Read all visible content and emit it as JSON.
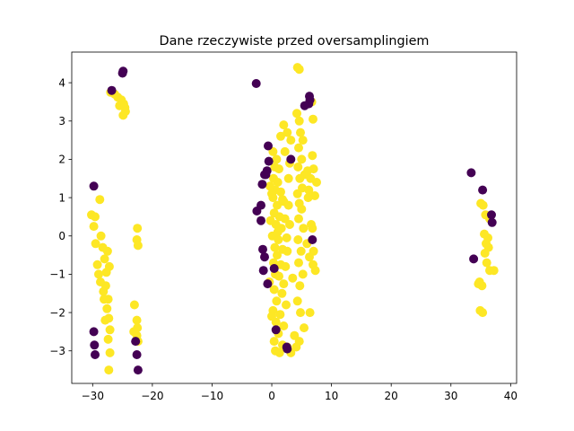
{
  "chart_data": {
    "type": "scatter",
    "title": "Dane rzeczywiste przed oversamplingiem",
    "xlabel": "",
    "ylabel": "",
    "xlim": [
      -33.5,
      41
    ],
    "ylim": [
      -3.85,
      4.8
    ],
    "xticks": [
      -30,
      -20,
      -10,
      0,
      10,
      20,
      30,
      40
    ],
    "yticks": [
      -3,
      -2,
      -1,
      0,
      1,
      2,
      3,
      4
    ],
    "grid": false,
    "colors": {
      "class0": "#440154",
      "class1": "#fde725"
    },
    "series": [
      {
        "color": "#fde725",
        "points": [
          [
            -27,
            3.75
          ],
          [
            -26.3,
            3.7
          ],
          [
            -25.8,
            3.62
          ],
          [
            -25.2,
            3.55
          ],
          [
            -24.8,
            3.45
          ],
          [
            -24.6,
            3.35
          ],
          [
            -24.5,
            3.25
          ],
          [
            -25.5,
            3.4
          ],
          [
            -24.9,
            3.15
          ],
          [
            -30.2,
            0.55
          ],
          [
            -29.6,
            0.5
          ],
          [
            -29.8,
            0.25
          ],
          [
            -29.5,
            -0.2
          ],
          [
            -28.8,
            0.95
          ],
          [
            -28.6,
            0.0
          ],
          [
            -28.3,
            -0.3
          ],
          [
            -28.0,
            -0.6
          ],
          [
            -27.7,
            -0.95
          ],
          [
            -27.5,
            -0.4
          ],
          [
            -27.8,
            -1.3
          ],
          [
            -28.1,
            -1.65
          ],
          [
            -27.4,
            -1.65
          ],
          [
            -27.6,
            -1.9
          ],
          [
            -27.3,
            -2.15
          ],
          [
            -27.1,
            -2.45
          ],
          [
            -27.4,
            -2.7
          ],
          [
            -27.1,
            -3.05
          ],
          [
            -27.3,
            -3.5
          ],
          [
            -29.2,
            -0.75
          ],
          [
            -29.0,
            -1.0
          ],
          [
            -28.7,
            -1.2
          ],
          [
            -27.9,
            -2.2
          ],
          [
            -27.2,
            -0.8
          ],
          [
            -28.2,
            -1.45
          ],
          [
            -22.5,
            0.2
          ],
          [
            -22.6,
            -0.1
          ],
          [
            -22.4,
            -0.25
          ],
          [
            -23.0,
            -1.8
          ],
          [
            -22.6,
            -2.2
          ],
          [
            -22.5,
            -2.4
          ],
          [
            -22.6,
            -2.6
          ],
          [
            -23.1,
            -2.5
          ],
          [
            -22.4,
            -2.75
          ],
          [
            0.2,
            2.2
          ],
          [
            0.8,
            2.0
          ],
          [
            0.5,
            1.8
          ],
          [
            1.2,
            1.75
          ],
          [
            0.3,
            1.5
          ],
          [
            1.0,
            1.4
          ],
          [
            0.6,
            1.2
          ],
          [
            1.5,
            1.15
          ],
          [
            0.2,
            1.0
          ],
          [
            1.8,
            0.95
          ],
          [
            0.9,
            0.8
          ],
          [
            0.4,
            0.6
          ],
          [
            1.3,
            0.5
          ],
          [
            2.2,
            0.45
          ],
          [
            0.7,
            0.3
          ],
          [
            1.6,
            0.2
          ],
          [
            0.1,
            0.0
          ],
          [
            1.1,
            -0.1
          ],
          [
            2.5,
            -0.05
          ],
          [
            0.5,
            -0.3
          ],
          [
            1.8,
            -0.35
          ],
          [
            0.9,
            -0.5
          ],
          [
            0.3,
            -0.7
          ],
          [
            1.5,
            -0.75
          ],
          [
            2.3,
            -0.8
          ],
          [
            0.6,
            -1.0
          ],
          [
            1.2,
            -1.05
          ],
          [
            2.0,
            -1.25
          ],
          [
            0.4,
            -1.4
          ],
          [
            1.7,
            -1.5
          ],
          [
            0.8,
            -1.7
          ],
          [
            2.4,
            -1.8
          ],
          [
            0.2,
            -1.95
          ],
          [
            1.4,
            -2.05
          ],
          [
            0.7,
            -2.25
          ],
          [
            2.0,
            -2.35
          ],
          [
            1.1,
            -2.55
          ],
          [
            0.4,
            -2.75
          ],
          [
            1.8,
            -2.85
          ],
          [
            0.6,
            -3.0
          ],
          [
            2.6,
            -2.9
          ],
          [
            1.3,
            -3.05
          ],
          [
            0.0,
            -2.1
          ],
          [
            -0.4,
            -1.2
          ],
          [
            -0.3,
            1.3
          ],
          [
            -0.2,
            0.4
          ],
          [
            2.8,
            1.5
          ],
          [
            2.2,
            2.2
          ],
          [
            3.0,
            1.9
          ],
          [
            1.5,
            2.6
          ],
          [
            2.0,
            2.9
          ],
          [
            2.6,
            2.7
          ],
          [
            3.2,
            2.5
          ],
          [
            2.8,
            0.8
          ],
          [
            3.0,
            0.3
          ],
          [
            2.6,
            -0.4
          ],
          [
            3.5,
            -1.1
          ],
          [
            0.0,
            1.1
          ],
          [
            1.0,
            0.1
          ],
          [
            2.0,
            0.9
          ],
          [
            4.2,
            3.2
          ],
          [
            4.6,
            3.0
          ],
          [
            4.8,
            2.7
          ],
          [
            5.2,
            2.5
          ],
          [
            4.5,
            2.3
          ],
          [
            5.0,
            2.0
          ],
          [
            4.4,
            1.8
          ],
          [
            5.5,
            1.6
          ],
          [
            4.7,
            1.5
          ],
          [
            5.1,
            1.25
          ],
          [
            4.3,
            1.1
          ],
          [
            4.6,
            0.85
          ],
          [
            5.0,
            0.7
          ],
          [
            4.5,
            0.45
          ],
          [
            5.3,
            0.2
          ],
          [
            4.4,
            -0.1
          ],
          [
            4.9,
            -0.4
          ],
          [
            4.5,
            -0.7
          ],
          [
            5.2,
            -1.0
          ],
          [
            4.7,
            -1.3
          ],
          [
            4.3,
            -1.7
          ],
          [
            4.8,
            -2.0
          ],
          [
            5.4,
            -2.4
          ],
          [
            4.6,
            -2.75
          ],
          [
            4.1,
            -2.9
          ],
          [
            3.2,
            -3.05
          ],
          [
            3.8,
            -2.6
          ],
          [
            4.3,
            4.4
          ],
          [
            4.6,
            4.35
          ],
          [
            6.7,
            3.5
          ],
          [
            6.9,
            3.05
          ],
          [
            6.8,
            2.1
          ],
          [
            7.0,
            1.75
          ],
          [
            6.5,
            1.5
          ],
          [
            7.2,
            1.05
          ],
          [
            7.5,
            1.4
          ],
          [
            6.6,
            0.3
          ],
          [
            6.8,
            0.2
          ],
          [
            7.0,
            -0.4
          ],
          [
            6.9,
            -0.75
          ],
          [
            7.3,
            -0.9
          ],
          [
            6.4,
            -2.0
          ],
          [
            6.0,
            1.7
          ],
          [
            6.2,
            1.2
          ],
          [
            6.1,
            1.0
          ],
          [
            5.9,
            -0.2
          ],
          [
            6.3,
            -0.55
          ],
          [
            35.0,
            0.85
          ],
          [
            35.4,
            0.8
          ],
          [
            35.8,
            0.55
          ],
          [
            36.5,
            0.45
          ],
          [
            35.6,
            0.05
          ],
          [
            36.2,
            -0.05
          ],
          [
            35.9,
            -0.2
          ],
          [
            36.3,
            -0.3
          ],
          [
            35.7,
            -0.45
          ],
          [
            36.5,
            -0.9
          ],
          [
            37.2,
            -0.9
          ],
          [
            34.8,
            -1.2
          ],
          [
            35.2,
            -1.3
          ],
          [
            34.9,
            -1.95
          ],
          [
            35.3,
            -2.0
          ],
          [
            36.0,
            -0.7
          ],
          [
            34.6,
            -1.25
          ]
        ]
      },
      {
        "color": "#440154",
        "points": [
          [
            -25,
            4.25
          ],
          [
            -24.9,
            4.3
          ],
          [
            -26.8,
            3.8
          ],
          [
            -29.8,
            1.3
          ],
          [
            -29.8,
            -2.5
          ],
          [
            -29.7,
            -2.85
          ],
          [
            -29.6,
            -3.1
          ],
          [
            -22.8,
            -2.75
          ],
          [
            -22.6,
            -3.1
          ],
          [
            -22.4,
            -3.5
          ],
          [
            -2.6,
            3.98
          ],
          [
            -0.6,
            2.35
          ],
          [
            -0.5,
            1.95
          ],
          [
            -1.2,
            1.6
          ],
          [
            -0.8,
            1.7
          ],
          [
            -1.0,
            1.6
          ],
          [
            -1.6,
            1.35
          ],
          [
            -1.8,
            0.8
          ],
          [
            -2.5,
            0.65
          ],
          [
            -1.8,
            0.4
          ],
          [
            -1.5,
            -0.35
          ],
          [
            -1.2,
            -0.55
          ],
          [
            -1.4,
            -0.9
          ],
          [
            0.4,
            -0.85
          ],
          [
            -0.7,
            -1.25
          ],
          [
            3.2,
            2.0
          ],
          [
            0.7,
            -2.45
          ],
          [
            2.5,
            -2.9
          ],
          [
            2.6,
            -2.95
          ],
          [
            6.3,
            3.65
          ],
          [
            6.4,
            3.55
          ],
          [
            6.2,
            3.45
          ],
          [
            5.5,
            3.4
          ],
          [
            6.8,
            -0.1
          ],
          [
            33.4,
            1.65
          ],
          [
            35.3,
            1.2
          ],
          [
            36.8,
            0.55
          ],
          [
            36.9,
            0.35
          ],
          [
            33.8,
            -0.6
          ]
        ]
      }
    ]
  }
}
